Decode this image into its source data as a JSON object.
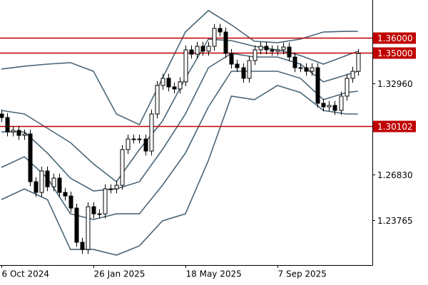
{
  "chart_data": {
    "type": "candlestick",
    "categories": [
      "6 Oct 2024",
      null,
      null,
      null,
      null,
      null,
      null,
      null,
      null,
      null,
      null,
      null,
      null,
      null,
      null,
      null,
      "26 Jan 2025",
      null,
      null,
      null,
      null,
      null,
      null,
      null,
      null,
      null,
      null,
      null,
      null,
      null,
      null,
      null,
      "18 May 2025",
      null,
      null,
      null,
      null,
      null,
      null,
      null,
      null,
      null,
      null,
      null,
      null,
      null,
      null,
      null,
      "7 Sep 2025",
      null,
      null,
      null,
      null,
      null,
      null,
      null,
      null,
      null,
      null,
      null,
      null,
      null,
      null
    ],
    "open": [
      1.309,
      1.3066,
      1.297,
      1.298,
      1.2946,
      1.2956,
      1.2635,
      1.2563,
      1.2707,
      1.2601,
      1.2659,
      1.2563,
      1.2539,
      1.2458,
      1.2228,
      1.218,
      1.2467,
      1.2419,
      1.2419,
      1.2587,
      1.2587,
      1.2611,
      1.2851,
      1.2922,
      1.2922,
      1.2922,
      1.2841,
      1.309,
      1.3282,
      1.333,
      1.3272,
      1.3258,
      1.3306,
      1.3521,
      1.3492,
      1.3545,
      1.3512,
      1.3545,
      1.3665,
      1.3641,
      1.3497,
      1.3425,
      1.3401,
      1.333,
      1.3449,
      1.3521,
      1.3545,
      1.3521,
      1.3512,
      1.3521,
      1.354,
      1.3473,
      1.3401,
      1.3401,
      1.3377,
      1.3401,
      1.3162,
      1.3138,
      1.3148,
      1.3114,
      1.321,
      1.333,
      1.3377
    ],
    "high": [
      1.312,
      1.3096,
      1.301,
      1.301,
      1.2986,
      1.2986,
      1.2665,
      1.2737,
      1.2737,
      1.2689,
      1.2689,
      1.2593,
      1.2569,
      1.2488,
      1.2258,
      1.2497,
      1.2497,
      1.2449,
      1.2617,
      1.2617,
      1.2641,
      1.2881,
      1.2952,
      1.2952,
      1.2952,
      1.2952,
      1.312,
      1.3312,
      1.336,
      1.336,
      1.3302,
      1.3336,
      1.3551,
      1.3551,
      1.3575,
      1.3575,
      1.3575,
      1.3695,
      1.3695,
      1.3671,
      1.3527,
      1.3455,
      1.3431,
      1.3479,
      1.3551,
      1.3575,
      1.3575,
      1.3551,
      1.3551,
      1.357,
      1.357,
      1.3503,
      1.3431,
      1.3431,
      1.3431,
      1.3431,
      1.3192,
      1.3178,
      1.3178,
      1.324,
      1.336,
      1.3407,
      1.3527
    ],
    "low": [
      1.3036,
      1.294,
      1.294,
      1.2916,
      1.2916,
      1.2605,
      1.2533,
      1.2533,
      1.2571,
      1.2571,
      1.2533,
      1.2509,
      1.2428,
      1.2198,
      1.215,
      1.215,
      1.2389,
      1.2389,
      1.2389,
      1.2557,
      1.2557,
      1.2581,
      1.2821,
      1.2892,
      1.2892,
      1.2811,
      1.2811,
      1.306,
      1.3252,
      1.3242,
      1.3228,
      1.3228,
      1.3276,
      1.3462,
      1.3462,
      1.3482,
      1.3482,
      1.3515,
      1.3611,
      1.3467,
      1.3395,
      1.3371,
      1.33,
      1.33,
      1.3419,
      1.3491,
      1.3491,
      1.3482,
      1.3482,
      1.3491,
      1.3443,
      1.3371,
      1.3371,
      1.3347,
      1.3347,
      1.3132,
      1.3108,
      1.3108,
      1.3084,
      1.3084,
      1.318,
      1.33,
      1.3347
    ],
    "close": [
      1.3066,
      1.297,
      1.298,
      1.2946,
      1.2956,
      1.2635,
      1.2563,
      1.2707,
      1.2601,
      1.2659,
      1.2563,
      1.2539,
      1.2458,
      1.2228,
      1.218,
      1.2467,
      1.2419,
      1.2419,
      1.2587,
      1.2587,
      1.2611,
      1.2851,
      1.2922,
      1.2922,
      1.2922,
      1.2841,
      1.309,
      1.3282,
      1.333,
      1.3272,
      1.3258,
      1.3306,
      1.3521,
      1.3492,
      1.3545,
      1.3512,
      1.3545,
      1.3665,
      1.3641,
      1.3497,
      1.3425,
      1.3401,
      1.333,
      1.3449,
      1.3521,
      1.3545,
      1.3521,
      1.3512,
      1.3521,
      1.354,
      1.3473,
      1.3401,
      1.3401,
      1.3377,
      1.3401,
      1.3162,
      1.3138,
      1.3148,
      1.3114,
      1.321,
      1.333,
      1.3377,
      1.3497
    ],
    "up_color": "#ffffff",
    "down_color": "#000000",
    "bands": [
      {
        "color": "#4a6577",
        "x": [
          0,
          4,
          8,
          12,
          16,
          20,
          24,
          28,
          32,
          36,
          40,
          44,
          48,
          52,
          56,
          60,
          62
        ],
        "values": [
          1.3392,
          1.3411,
          1.3425,
          1.3435,
          1.3377,
          1.309,
          1.3018,
          1.333,
          1.3641,
          1.3785,
          1.3689,
          1.3579,
          1.3569,
          1.3593,
          1.3641,
          1.3646,
          1.3646
        ]
      },
      {
        "color": "#4a6577",
        "x": [
          0,
          4,
          8,
          12,
          16,
          20,
          24,
          28,
          32,
          36,
          40,
          44,
          48,
          52,
          56,
          60,
          62
        ],
        "values": [
          1.3114,
          1.309,
          1.2994,
          1.2898,
          1.2755,
          1.2635,
          1.2851,
          1.3042,
          1.333,
          1.3593,
          1.3583,
          1.3545,
          1.3521,
          1.3483,
          1.3425,
          1.3483,
          1.3512
        ]
      },
      {
        "color": "#4a6577",
        "x": [
          0,
          4,
          8,
          12,
          16,
          20,
          24,
          28,
          32,
          36,
          40,
          44,
          48,
          52,
          56,
          60,
          62
        ],
        "values": [
          1.297,
          1.297,
          1.2827,
          1.2659,
          1.2573,
          1.2587,
          1.2635,
          1.2851,
          1.309,
          1.3401,
          1.3497,
          1.3473,
          1.3473,
          1.3425,
          1.3306,
          1.3353,
          1.3377
        ]
      },
      {
        "color": "#4a6577",
        "x": [
          0,
          4,
          8,
          12,
          16,
          20,
          24,
          28,
          32,
          36,
          40,
          44,
          48,
          52,
          56,
          60,
          62
        ],
        "values": [
          1.2731,
          1.2803,
          1.2659,
          1.2419,
          1.2381,
          1.2419,
          1.2419,
          1.2611,
          1.2827,
          1.3138,
          1.3377,
          1.3377,
          1.3377,
          1.333,
          1.3186,
          1.3234,
          1.3243
        ]
      },
      {
        "color": "#4a6577",
        "x": [
          0,
          4,
          8,
          12,
          16,
          20,
          24,
          28,
          32,
          36,
          40,
          44,
          48,
          52,
          56,
          60,
          62
        ],
        "values": [
          1.2515,
          1.2587,
          1.2515,
          1.218,
          1.218,
          1.2142,
          1.2204,
          1.2372,
          1.2419,
          1.2779,
          1.321,
          1.3186,
          1.3282,
          1.3234,
          1.3114,
          1.309,
          1.309
        ]
      }
    ],
    "levels": [
      {
        "value": 1.36,
        "label": "1.36000"
      },
      {
        "value": 1.35,
        "label": "1.35000"
      },
      {
        "value": 1.30102,
        "label": "1.30102"
      }
    ],
    "level_color": "#c00000",
    "ylim": [
      1.2075,
      1.3856
    ],
    "yticks": [
      {
        "value": 1.3296,
        "label": "1.32960"
      },
      {
        "value": 1.2683,
        "label": "1.26830"
      },
      {
        "value": 1.23765,
        "label": "1.23765"
      }
    ]
  }
}
